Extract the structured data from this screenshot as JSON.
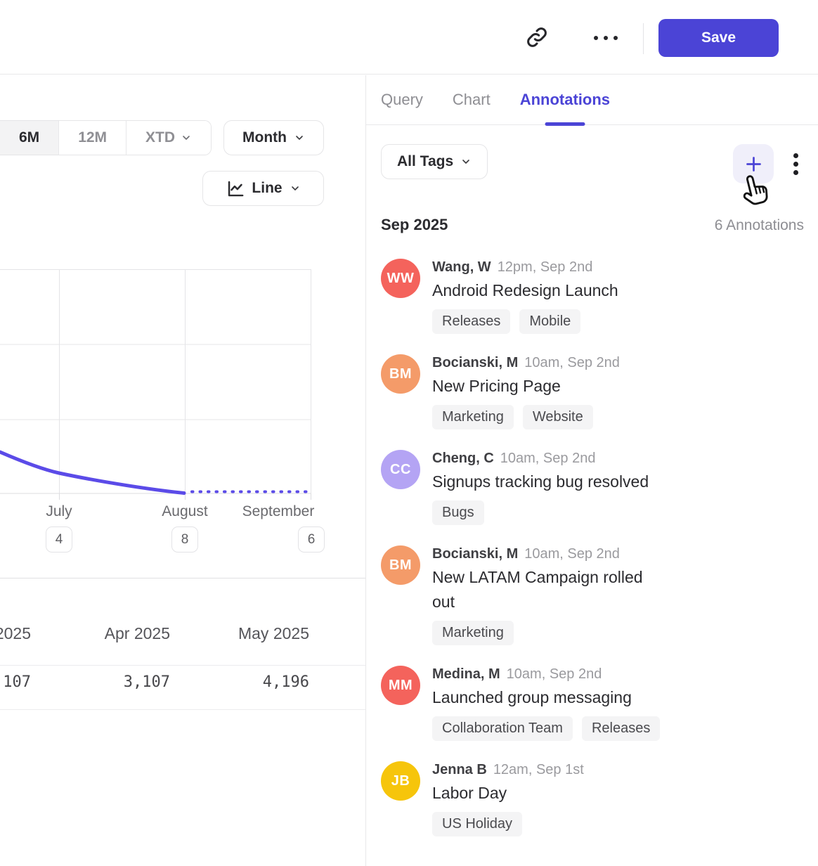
{
  "colors": {
    "accent": "#4B44D6",
    "chart_line": "#5B4BE8"
  },
  "topbar": {
    "save_label": "Save"
  },
  "panel_tabs": {
    "query": "Query",
    "chart": "Chart",
    "annotations": "Annotations",
    "active": "Annotations"
  },
  "chart_controls": {
    "range_options": [
      "6M",
      "12M",
      "XTD"
    ],
    "active_range": "6M",
    "granularity": "Month",
    "chart_type": "Line"
  },
  "chart_data": {
    "type": "line",
    "x_labels": [
      "July",
      "August",
      "September"
    ],
    "x_badge_counts": [
      "4",
      "8",
      "6"
    ],
    "grid": true,
    "y_axis_labels_visible": false,
    "series": [
      {
        "name": "actual",
        "style": "solid",
        "points": [
          {
            "x": "left edge (late June)",
            "y_frac_above_baseline": 0.185
          },
          {
            "x": "July",
            "y_frac_above_baseline": 0.09
          },
          {
            "x": "August",
            "y_frac_above_baseline": 0.0
          }
        ]
      },
      {
        "name": "projection",
        "style": "dotted",
        "points": [
          {
            "x": "August",
            "y_frac_above_baseline": 0.0
          },
          {
            "x": "September",
            "y_frac_above_baseline": 0.0
          }
        ]
      }
    ]
  },
  "summary_table": {
    "headers": [
      "2025",
      "Apr 2025",
      "May 2025"
    ],
    "values": [
      "107",
      "3,107",
      "4,196"
    ]
  },
  "annotations_panel": {
    "filter_label": "All Tags",
    "month_header": "Sep 2025",
    "count_label": "6 Annotations",
    "items": [
      {
        "initials": "WW",
        "avatar_color": "#F4635C",
        "author": "Wang, W",
        "time": "12pm, Sep 2nd",
        "title": "Android Redesign Launch",
        "tags": [
          "Releases",
          "Mobile"
        ]
      },
      {
        "initials": "BM",
        "avatar_color": "#F49B69",
        "author": "Bocianski, M",
        "time": "10am, Sep 2nd",
        "title": "New Pricing Page",
        "tags": [
          "Marketing",
          "Website"
        ]
      },
      {
        "initials": "CC",
        "avatar_color": "#B4A4F4",
        "author": "Cheng, C",
        "time": "10am, Sep 2nd",
        "title": "Signups tracking bug resolved",
        "tags": [
          "Bugs"
        ]
      },
      {
        "initials": "BM",
        "avatar_color": "#F49B69",
        "author": "Bocianski, M",
        "time": "10am, Sep 2nd",
        "title": "New LATAM Campaign rolled out",
        "tags": [
          "Marketing"
        ]
      },
      {
        "initials": "MM",
        "avatar_color": "#F4635C",
        "author": "Medina, M",
        "time": "10am, Sep 2nd",
        "title": "Launched group messaging",
        "tags": [
          "Collaboration Team",
          "Releases"
        ]
      },
      {
        "initials": "JB",
        "avatar_color": "#F6C50B",
        "author": "Jenna B",
        "time": "12am, Sep 1st",
        "title": "Labor Day",
        "tags": [
          "US Holiday"
        ]
      }
    ]
  }
}
